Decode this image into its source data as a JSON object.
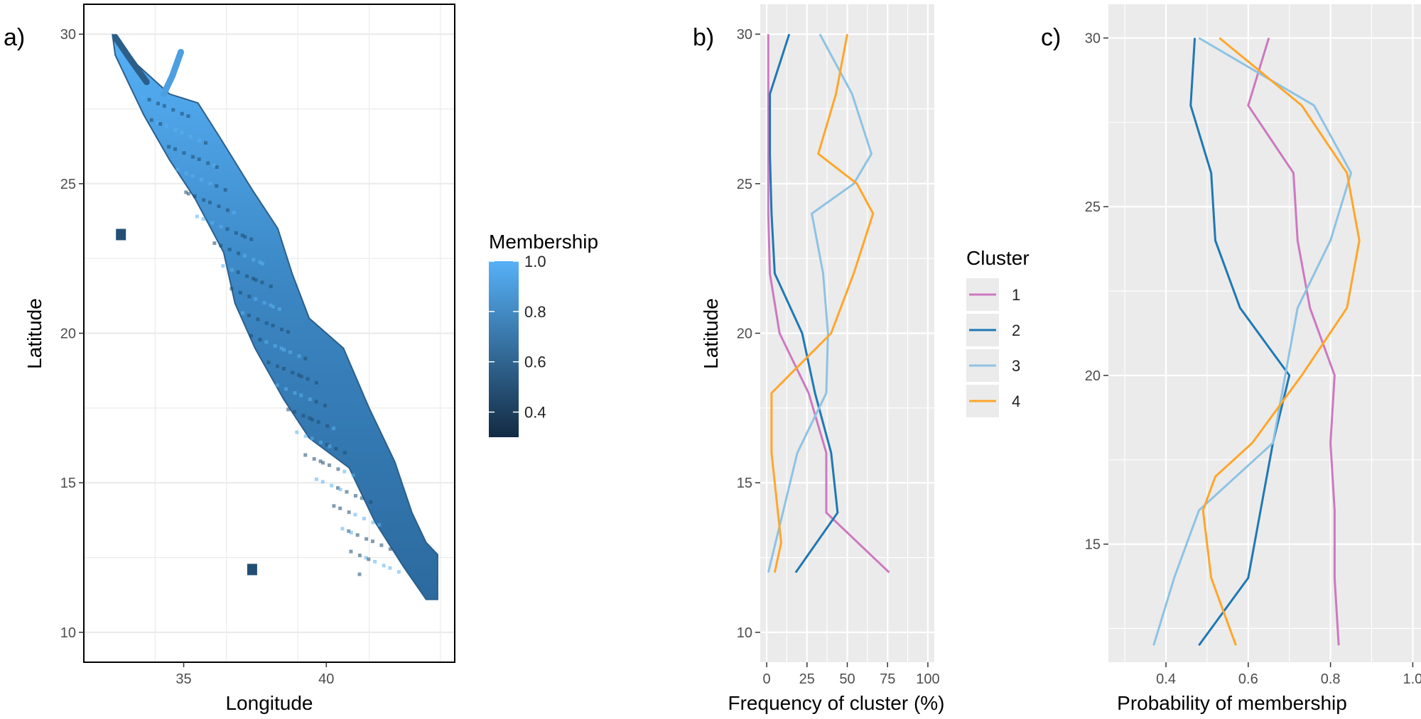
{
  "panel_tags": [
    "a)",
    "b)",
    "c)"
  ],
  "chart_data": [
    {
      "type": "heatmap",
      "panel": "a)",
      "xlabel": "Longitude",
      "ylabel": "Latitude",
      "xlim": [
        31.5,
        44.5
      ],
      "ylim": [
        9,
        31
      ],
      "x_ticks": [
        35,
        40
      ],
      "y_ticks": [
        10,
        15,
        20,
        25,
        30
      ],
      "grid": true,
      "legend": {
        "title": "Membership",
        "placement": "right",
        "range": [
          0.3,
          1.0
        ],
        "ticks": [
          "1.0",
          "0.8",
          "0.6",
          "0.4"
        ],
        "color_low": "#132B43",
        "color_high": "#56B1F7"
      },
      "region_outline": [
        [
          32.5,
          30
        ],
        [
          33,
          29.3
        ],
        [
          34.5,
          28
        ],
        [
          35.5,
          27.7
        ],
        [
          36.3,
          26.5
        ],
        [
          37.4,
          24.8
        ],
        [
          38.3,
          23.5
        ],
        [
          38.8,
          22
        ],
        [
          39.4,
          20.5
        ],
        [
          40.6,
          19.5
        ],
        [
          41.5,
          17.5
        ],
        [
          42.4,
          15.7
        ],
        [
          43,
          14
        ],
        [
          43.5,
          13
        ],
        [
          43.9,
          12.6
        ],
        [
          43.9,
          11.1
        ],
        [
          43.5,
          11.1
        ],
        [
          42.7,
          12.2
        ],
        [
          41.7,
          13.7
        ],
        [
          40.8,
          15.5
        ],
        [
          39.4,
          16.5
        ],
        [
          38.5,
          17.8
        ],
        [
          37.5,
          19.5
        ],
        [
          36.8,
          21
        ],
        [
          36.4,
          22.7
        ],
        [
          35.4,
          24.5
        ],
        [
          34.5,
          25.8
        ],
        [
          33.6,
          27.3
        ],
        [
          33.1,
          28.3
        ],
        [
          32.6,
          29.3
        ]
      ],
      "islands": [
        [
          32.8,
          23.3
        ],
        [
          37.4,
          12.1
        ]
      ]
    },
    {
      "type": "line",
      "panel": "b)",
      "xlabel": "Frequency of cluster (%)",
      "ylabel": "Latitude",
      "xlim": [
        -4,
        104
      ],
      "ylim": [
        9,
        31
      ],
      "x_ticks": [
        0,
        25,
        50,
        75,
        100
      ],
      "y_ticks": [
        10,
        15,
        20,
        25,
        30
      ],
      "grid": true,
      "series": [
        {
          "name": "1",
          "color": "#CC79C0",
          "points": [
            [
              1,
              30
            ],
            [
              1,
              28
            ],
            [
              1,
              26
            ],
            [
              1,
              24
            ],
            [
              2,
              22
            ],
            [
              8,
              20
            ],
            [
              26,
              18
            ],
            [
              37,
              16
            ],
            [
              37,
              14
            ],
            [
              76,
              12
            ]
          ]
        },
        {
          "name": "2",
          "color": "#1F78B4",
          "points": [
            [
              14,
              30
            ],
            [
              2,
              28
            ],
            [
              2,
              26
            ],
            [
              3,
              24
            ],
            [
              5,
              22
            ],
            [
              22,
              20
            ],
            [
              30,
              18
            ],
            [
              40,
              16
            ],
            [
              44,
              14
            ],
            [
              18,
              12
            ]
          ]
        },
        {
          "name": "3",
          "color": "#8EC3E3",
          "points": [
            [
              33,
              30
            ],
            [
              53,
              28
            ],
            [
              65,
              26
            ],
            [
              54,
              25
            ],
            [
              28,
              24
            ],
            [
              35,
              22
            ],
            [
              38,
              20
            ],
            [
              37,
              18
            ],
            [
              19,
              16
            ],
            [
              10,
              14
            ],
            [
              1,
              12
            ]
          ]
        },
        {
          "name": "4",
          "color": "#FFA62B",
          "points": [
            [
              50,
              30
            ],
            [
              43,
              28
            ],
            [
              32,
              26
            ],
            [
              56,
              25
            ],
            [
              66,
              24
            ],
            [
              54,
              22
            ],
            [
              40,
              20
            ],
            [
              3,
              18
            ],
            [
              3,
              16
            ],
            [
              9,
              13
            ],
            [
              5,
              12
            ]
          ]
        }
      ]
    },
    {
      "type": "line",
      "panel": "c)",
      "xlabel": "Probability of membership",
      "ylabel": "",
      "xlim": [
        0.26,
        1.02
      ],
      "ylim": [
        11.5,
        31
      ],
      "x_ticks": [
        "0.4",
        "0.6",
        "0.8",
        "1.0"
      ],
      "y_ticks": [
        15,
        20,
        25,
        30
      ],
      "grid": true,
      "series": [
        {
          "name": "1",
          "color": "#CC79C0",
          "points": [
            [
              0.65,
              30
            ],
            [
              0.6,
              28
            ],
            [
              0.71,
              26
            ],
            [
              0.72,
              24
            ],
            [
              0.75,
              22
            ],
            [
              0.81,
              20
            ],
            [
              0.8,
              18
            ],
            [
              0.81,
              16
            ],
            [
              0.81,
              14
            ],
            [
              0.82,
              12
            ]
          ]
        },
        {
          "name": "2",
          "color": "#1F78B4",
          "points": [
            [
              0.47,
              30
            ],
            [
              0.46,
              28
            ],
            [
              0.51,
              26
            ],
            [
              0.52,
              24
            ],
            [
              0.58,
              22
            ],
            [
              0.7,
              20
            ],
            [
              0.66,
              18
            ],
            [
              0.63,
              16
            ],
            [
              0.6,
              14
            ],
            [
              0.48,
              12
            ]
          ]
        },
        {
          "name": "3",
          "color": "#8EC3E3",
          "points": [
            [
              0.48,
              30
            ],
            [
              0.76,
              28
            ],
            [
              0.85,
              26
            ],
            [
              0.8,
              24
            ],
            [
              0.72,
              22
            ],
            [
              0.69,
              20
            ],
            [
              0.66,
              18
            ],
            [
              0.48,
              16
            ],
            [
              0.42,
              14
            ],
            [
              0.37,
              12
            ]
          ]
        },
        {
          "name": "4",
          "color": "#FFA62B",
          "points": [
            [
              0.53,
              30
            ],
            [
              0.73,
              28
            ],
            [
              0.84,
              26
            ],
            [
              0.87,
              24
            ],
            [
              0.84,
              22
            ],
            [
              0.73,
              20
            ],
            [
              0.61,
              18
            ],
            [
              0.52,
              17
            ],
            [
              0.49,
              16
            ],
            [
              0.51,
              14
            ],
            [
              0.57,
              12
            ]
          ]
        }
      ]
    }
  ],
  "cluster_legend": {
    "title": "Cluster",
    "placement": "right of panel b",
    "items": [
      {
        "label": "1",
        "color": "#CC79C0"
      },
      {
        "label": "2",
        "color": "#1F78B4"
      },
      {
        "label": "3",
        "color": "#8EC3E3"
      },
      {
        "label": "4",
        "color": "#FFA62B"
      }
    ]
  }
}
